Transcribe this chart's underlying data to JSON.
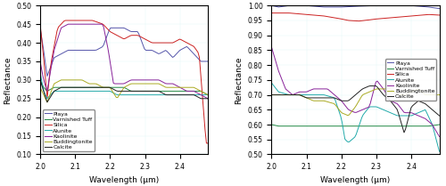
{
  "legend_labels": [
    "Playa",
    "Varnished Tuff",
    "Silica",
    "Alunite",
    "Kaolinite",
    "Buddingtonite",
    "Calcite"
  ],
  "colors": [
    "#5555aa",
    "#228844",
    "#cc2222",
    "#22aaaa",
    "#882299",
    "#aaaa22",
    "#222222"
  ],
  "xlabel": "Wavelength (μm)",
  "ylabel": "Reflectance",
  "left_ylim": [
    0.1,
    0.5
  ],
  "right_ylim": [
    0.5,
    1.0
  ],
  "left_yticks": [
    0.1,
    0.15,
    0.2,
    0.25,
    0.3,
    0.35,
    0.4,
    0.45,
    0.5
  ],
  "right_yticks": [
    0.5,
    0.55,
    0.6,
    0.65,
    0.7,
    0.75,
    0.8,
    0.85,
    0.9,
    0.95,
    1.0
  ],
  "xticks": [
    2.0,
    2.1,
    2.2,
    2.3,
    2.4
  ],
  "xlim": [
    2.0,
    2.48
  ]
}
